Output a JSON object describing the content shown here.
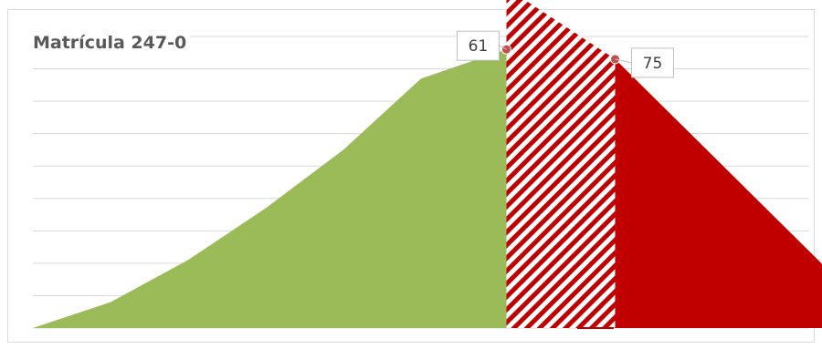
{
  "chart_data": {
    "type": "area",
    "title": "Matrícula 247-0",
    "xlabel": "",
    "ylabel": "",
    "grid": true,
    "x_range": [
      0,
      100
    ],
    "ylim": [
      0,
      9
    ],
    "series": [
      {
        "style": "solid",
        "color": "#9bbb59",
        "points": [
          [
            0,
            0
          ],
          [
            10,
            0.8
          ],
          [
            20,
            2.1
          ],
          [
            30,
            3.7
          ],
          [
            40,
            5.5
          ],
          [
            45,
            6.6
          ],
          [
            50,
            7.7
          ],
          [
            61,
            8.6
          ],
          [
            61,
            0
          ]
        ]
      },
      {
        "style": "striped",
        "color": "#c00000",
        "points": [
          [
            61,
            0
          ],
          [
            61,
            10.5
          ],
          [
            75,
            8.3
          ],
          [
            75,
            0
          ]
        ]
      },
      {
        "style": "solid",
        "color": "#c00000",
        "points": [
          [
            75,
            0
          ],
          [
            75,
            8.3
          ],
          [
            110,
            0
          ]
        ]
      }
    ],
    "markers": [
      {
        "x": 61,
        "y": 8.6,
        "label": "61"
      },
      {
        "x": 75,
        "y": 8.3,
        "label": "75"
      }
    ]
  }
}
